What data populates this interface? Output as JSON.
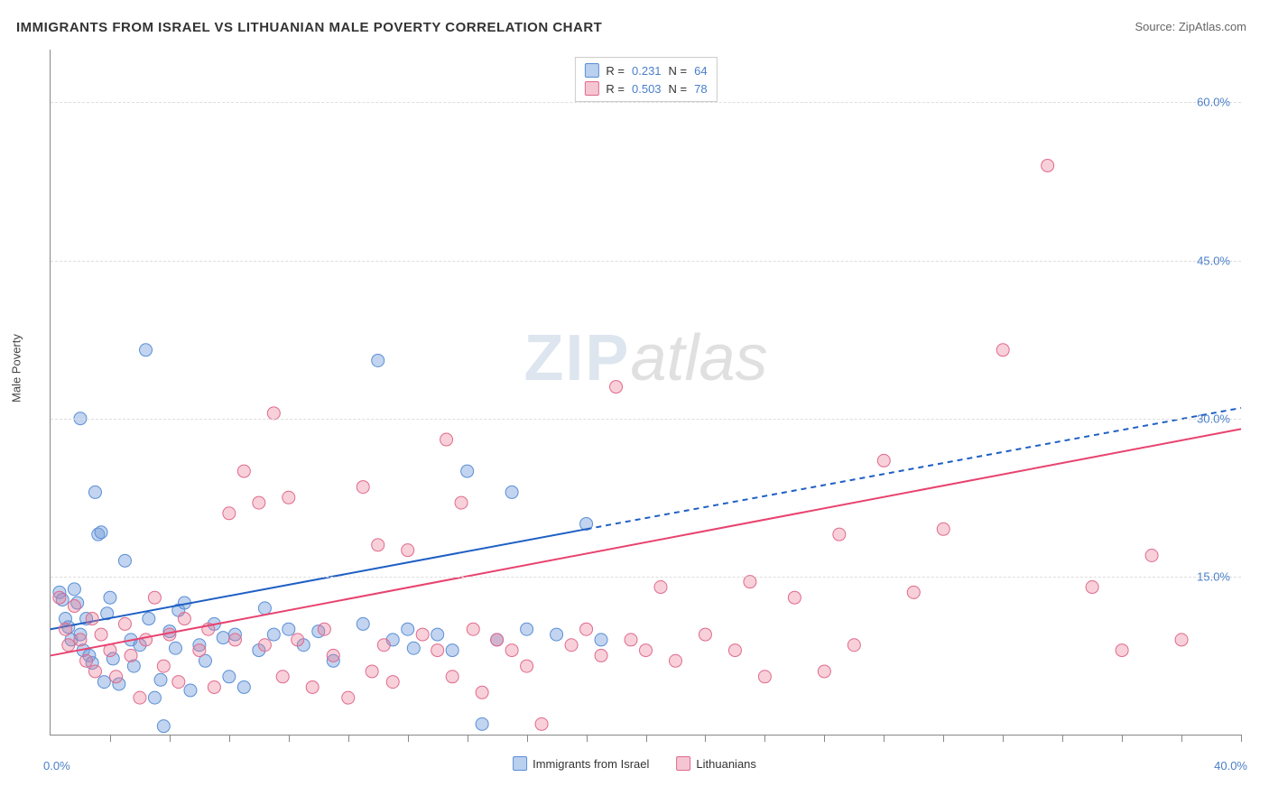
{
  "title": "IMMIGRANTS FROM ISRAEL VS LITHUANIAN MALE POVERTY CORRELATION CHART",
  "source_label": "Source: ZipAtlas.com",
  "y_axis_label": "Male Poverty",
  "watermark": {
    "part1": "ZIP",
    "part2": "atlas"
  },
  "chart": {
    "type": "scatter",
    "xlim": [
      0,
      40
    ],
    "ylim": [
      0,
      65
    ],
    "x_min_label": "0.0%",
    "x_max_label": "40.0%",
    "y_ticks": [
      15,
      30,
      45,
      60
    ],
    "y_tick_labels": [
      "15.0%",
      "30.0%",
      "45.0%",
      "60.0%"
    ],
    "x_minor_ticks": [
      2,
      4,
      6,
      8,
      10,
      12,
      14,
      16,
      18,
      20,
      22,
      24,
      26,
      28,
      30,
      32,
      34,
      36,
      38,
      40
    ],
    "background_color": "#ffffff",
    "grid_color": "#dddddd",
    "marker_radius": 7,
    "marker_stroke_width": 1,
    "series": [
      {
        "name": "Immigrants from Israel",
        "fill_color": "rgba(120,160,220,0.45)",
        "stroke_color": "#5a8fd6",
        "swatch_fill": "#b9d0ef",
        "swatch_border": "#5a8fd6",
        "R": "0.231",
        "N": "64",
        "trend": {
          "color": "#1f5fc4",
          "width": 2,
          "solid_from_x": 0,
          "solid_to_x": 18,
          "y_at_x0": 10.0,
          "y_at_xmax": 31.0,
          "y_at_split": 19.5
        },
        "points": [
          [
            0.3,
            13.5
          ],
          [
            0.4,
            12.8
          ],
          [
            0.5,
            11.0
          ],
          [
            0.6,
            10.2
          ],
          [
            0.7,
            9.0
          ],
          [
            0.8,
            13.8
          ],
          [
            0.9,
            12.5
          ],
          [
            1.0,
            9.5
          ],
          [
            1.0,
            30.0
          ],
          [
            1.1,
            8.0
          ],
          [
            1.2,
            11.0
          ],
          [
            1.3,
            7.5
          ],
          [
            1.4,
            6.8
          ],
          [
            1.5,
            23.0
          ],
          [
            1.6,
            19.0
          ],
          [
            1.7,
            19.2
          ],
          [
            1.8,
            5.0
          ],
          [
            1.9,
            11.5
          ],
          [
            2.0,
            13.0
          ],
          [
            2.1,
            7.2
          ],
          [
            2.3,
            4.8
          ],
          [
            2.5,
            16.5
          ],
          [
            2.7,
            9.0
          ],
          [
            2.8,
            6.5
          ],
          [
            3.0,
            8.5
          ],
          [
            3.2,
            36.5
          ],
          [
            3.3,
            11.0
          ],
          [
            3.5,
            3.5
          ],
          [
            3.7,
            5.2
          ],
          [
            3.8,
            0.8
          ],
          [
            4.0,
            9.8
          ],
          [
            4.2,
            8.2
          ],
          [
            4.3,
            11.8
          ],
          [
            4.5,
            12.5
          ],
          [
            4.7,
            4.2
          ],
          [
            5.0,
            8.5
          ],
          [
            5.2,
            7.0
          ],
          [
            5.5,
            10.5
          ],
          [
            5.8,
            9.2
          ],
          [
            6.0,
            5.5
          ],
          [
            6.2,
            9.5
          ],
          [
            6.5,
            4.5
          ],
          [
            7.0,
            8.0
          ],
          [
            7.2,
            12.0
          ],
          [
            7.5,
            9.5
          ],
          [
            8.0,
            10.0
          ],
          [
            8.5,
            8.5
          ],
          [
            9.0,
            9.8
          ],
          [
            9.5,
            7.0
          ],
          [
            10.5,
            10.5
          ],
          [
            11.0,
            35.5
          ],
          [
            11.5,
            9.0
          ],
          [
            12.0,
            10.0
          ],
          [
            12.2,
            8.2
          ],
          [
            13.0,
            9.5
          ],
          [
            13.5,
            8.0
          ],
          [
            14.0,
            25.0
          ],
          [
            14.5,
            1.0
          ],
          [
            15.0,
            9.0
          ],
          [
            15.5,
            23.0
          ],
          [
            16.0,
            10.0
          ],
          [
            17.0,
            9.5
          ],
          [
            18.0,
            20.0
          ],
          [
            18.5,
            9.0
          ]
        ]
      },
      {
        "name": "Lithuanians",
        "fill_color": "rgba(235,120,150,0.35)",
        "stroke_color": "#e06a8c",
        "swatch_fill": "#f5c5d3",
        "swatch_border": "#e06a8c",
        "R": "0.503",
        "N": "78",
        "trend": {
          "color": "#e8436f",
          "width": 2,
          "solid_from_x": 0,
          "solid_to_x": 40,
          "y_at_x0": 7.5,
          "y_at_xmax": 29.0,
          "y_at_split": 29.0
        },
        "points": [
          [
            0.3,
            13.0
          ],
          [
            0.5,
            10.0
          ],
          [
            0.6,
            8.5
          ],
          [
            0.8,
            12.2
          ],
          [
            1.0,
            9.0
          ],
          [
            1.2,
            7.0
          ],
          [
            1.4,
            11.0
          ],
          [
            1.5,
            6.0
          ],
          [
            1.7,
            9.5
          ],
          [
            2.0,
            8.0
          ],
          [
            2.2,
            5.5
          ],
          [
            2.5,
            10.5
          ],
          [
            2.7,
            7.5
          ],
          [
            3.0,
            3.5
          ],
          [
            3.2,
            9.0
          ],
          [
            3.5,
            13.0
          ],
          [
            3.8,
            6.5
          ],
          [
            4.0,
            9.5
          ],
          [
            4.3,
            5.0
          ],
          [
            4.5,
            11.0
          ],
          [
            5.0,
            8.0
          ],
          [
            5.3,
            10.0
          ],
          [
            5.5,
            4.5
          ],
          [
            6.0,
            21.0
          ],
          [
            6.2,
            9.0
          ],
          [
            6.5,
            25.0
          ],
          [
            7.0,
            22.0
          ],
          [
            7.2,
            8.5
          ],
          [
            7.5,
            30.5
          ],
          [
            7.8,
            5.5
          ],
          [
            8.0,
            22.5
          ],
          [
            8.3,
            9.0
          ],
          [
            8.8,
            4.5
          ],
          [
            9.2,
            10.0
          ],
          [
            9.5,
            7.5
          ],
          [
            10.0,
            3.5
          ],
          [
            10.5,
            23.5
          ],
          [
            10.8,
            6.0
          ],
          [
            11.0,
            18.0
          ],
          [
            11.2,
            8.5
          ],
          [
            11.5,
            5.0
          ],
          [
            12.0,
            17.5
          ],
          [
            12.5,
            9.5
          ],
          [
            13.0,
            8.0
          ],
          [
            13.3,
            28.0
          ],
          [
            13.5,
            5.5
          ],
          [
            13.8,
            22.0
          ],
          [
            14.2,
            10.0
          ],
          [
            14.5,
            4.0
          ],
          [
            15.0,
            9.0
          ],
          [
            15.5,
            8.0
          ],
          [
            16.0,
            6.5
          ],
          [
            16.5,
            1.0
          ],
          [
            17.5,
            8.5
          ],
          [
            18.0,
            10.0
          ],
          [
            18.5,
            7.5
          ],
          [
            19.0,
            33.0
          ],
          [
            19.5,
            9.0
          ],
          [
            20.0,
            8.0
          ],
          [
            20.5,
            14.0
          ],
          [
            21.0,
            7.0
          ],
          [
            22.0,
            9.5
          ],
          [
            23.0,
            8.0
          ],
          [
            23.5,
            14.5
          ],
          [
            24.0,
            5.5
          ],
          [
            25.0,
            13.0
          ],
          [
            26.0,
            6.0
          ],
          [
            26.5,
            19.0
          ],
          [
            27.0,
            8.5
          ],
          [
            28.0,
            26.0
          ],
          [
            29.0,
            13.5
          ],
          [
            30.0,
            19.5
          ],
          [
            32.0,
            36.5
          ],
          [
            33.5,
            54.0
          ],
          [
            35.0,
            14.0
          ],
          [
            36.0,
            8.0
          ],
          [
            37.0,
            17.0
          ],
          [
            38.0,
            9.0
          ]
        ]
      }
    ]
  },
  "legend_labels": {
    "R_prefix": "R  =",
    "N_prefix": "N  ="
  }
}
